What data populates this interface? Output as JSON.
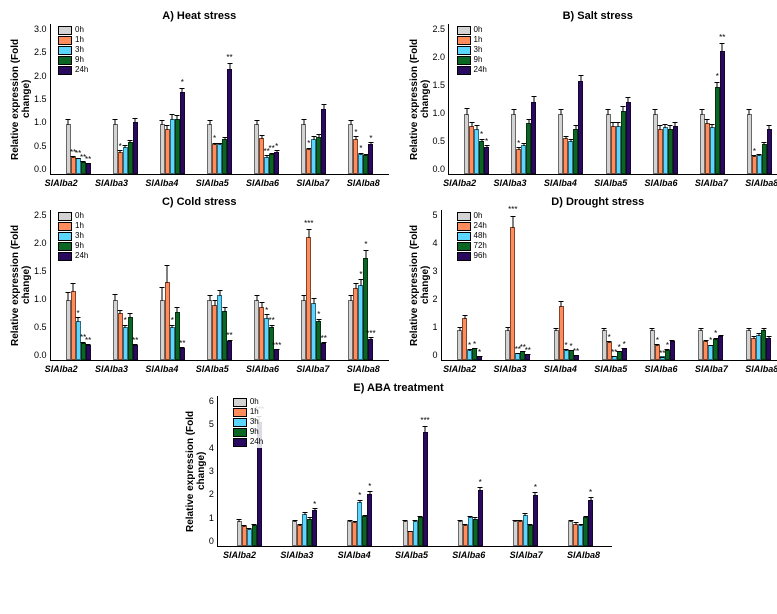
{
  "colors": {
    "t0": "#d3d3d3",
    "t1": "#ff8c5a",
    "t2": "#5ad6ff",
    "t3": "#0b6623",
    "t4": "#2a0a5e"
  },
  "ylabel": "Relative expression\n(Fold change)",
  "genes": [
    "SlAlba2",
    "SlAlba3",
    "SlAlba4",
    "SlAlba5",
    "SlAlba6",
    "SlAlba7",
    "SlAlba8"
  ],
  "panels": [
    {
      "id": "A",
      "title": "A) Heat stress",
      "ymax": 3.0,
      "ystep": 0.5,
      "legend": [
        "0h",
        "1h",
        "3h",
        "9h",
        "24h"
      ],
      "data": [
        [
          {
            "v": 1.0,
            "e": 0.12
          },
          {
            "v": 0.35,
            "e": 0.03,
            "s": "**"
          },
          {
            "v": 0.32,
            "e": 0.03,
            "s": "**"
          },
          {
            "v": 0.25,
            "e": 0.04,
            "s": "**"
          },
          {
            "v": 0.22,
            "e": 0.03,
            "s": "**"
          }
        ],
        [
          {
            "v": 1.0,
            "e": 0.12
          },
          {
            "v": 0.45,
            "e": 0.05,
            "s": "*"
          },
          {
            "v": 0.55,
            "e": 0.06
          },
          {
            "v": 0.65,
            "e": 0.05
          },
          {
            "v": 1.05,
            "e": 0.1
          }
        ],
        [
          {
            "v": 1.0,
            "e": 0.1
          },
          {
            "v": 0.9,
            "e": 0.1
          },
          {
            "v": 1.1,
            "e": 0.12
          },
          {
            "v": 1.1,
            "e": 0.1
          },
          {
            "v": 1.65,
            "e": 0.1,
            "s": "*"
          }
        ],
        [
          {
            "v": 1.0,
            "e": 0.1
          },
          {
            "v": 0.6,
            "e": 0.05,
            "s": "*"
          },
          {
            "v": 0.6,
            "e": 0.05
          },
          {
            "v": 0.7,
            "e": 0.06
          },
          {
            "v": 2.1,
            "e": 0.15,
            "s": "**"
          }
        ],
        [
          {
            "v": 1.0,
            "e": 0.1
          },
          {
            "v": 0.72,
            "e": 0.08
          },
          {
            "v": 0.35,
            "e": 0.05,
            "s": "**"
          },
          {
            "v": 0.4,
            "e": 0.05,
            "s": "**"
          },
          {
            "v": 0.45,
            "e": 0.05,
            "s": "*"
          }
        ],
        [
          {
            "v": 1.0,
            "e": 0.12
          },
          {
            "v": 0.5,
            "e": 0.05,
            "s": "*"
          },
          {
            "v": 0.7,
            "e": 0.08
          },
          {
            "v": 0.75,
            "e": 0.08
          },
          {
            "v": 1.3,
            "e": 0.12
          }
        ],
        [
          {
            "v": 1.0,
            "e": 0.1
          },
          {
            "v": 0.7,
            "e": 0.08,
            "s": "*"
          },
          {
            "v": 0.4,
            "e": 0.05,
            "s": "*"
          },
          {
            "v": 0.38,
            "e": 0.04
          },
          {
            "v": 0.6,
            "e": 0.06,
            "s": "*"
          }
        ]
      ]
    },
    {
      "id": "B",
      "title": "B) Salt stress",
      "ymax": 2.5,
      "ystep": 0.5,
      "legend": [
        "0h",
        "1h",
        "3h",
        "9h",
        "24h"
      ],
      "data": [
        [
          {
            "v": 1.0,
            "e": 0.12
          },
          {
            "v": 0.8,
            "e": 0.08
          },
          {
            "v": 0.75,
            "e": 0.08
          },
          {
            "v": 0.55,
            "e": 0.06,
            "s": "*"
          },
          {
            "v": 0.45,
            "e": 0.05,
            "s": "*"
          }
        ],
        [
          {
            "v": 1.0,
            "e": 0.1
          },
          {
            "v": 0.42,
            "e": 0.05,
            "s": "*"
          },
          {
            "v": 0.48,
            "e": 0.05
          },
          {
            "v": 0.85,
            "e": 0.08
          },
          {
            "v": 1.2,
            "e": 0.12
          }
        ],
        [
          {
            "v": 1.0,
            "e": 0.1
          },
          {
            "v": 0.6,
            "e": 0.06
          },
          {
            "v": 0.55,
            "e": 0.06
          },
          {
            "v": 0.75,
            "e": 0.08
          },
          {
            "v": 1.55,
            "e": 0.12
          }
        ],
        [
          {
            "v": 1.0,
            "e": 0.1
          },
          {
            "v": 0.8,
            "e": 0.08
          },
          {
            "v": 0.8,
            "e": 0.08
          },
          {
            "v": 1.05,
            "e": 0.1
          },
          {
            "v": 1.2,
            "e": 0.1
          }
        ],
        [
          {
            "v": 1.0,
            "e": 0.1
          },
          {
            "v": 0.75,
            "e": 0.08
          },
          {
            "v": 0.78,
            "e": 0.08
          },
          {
            "v": 0.75,
            "e": 0.08
          },
          {
            "v": 0.8,
            "e": 0.08
          }
        ],
        [
          {
            "v": 1.0,
            "e": 0.1
          },
          {
            "v": 0.85,
            "e": 0.08
          },
          {
            "v": 0.78,
            "e": 0.08
          },
          {
            "v": 1.45,
            "e": 0.1,
            "s": "*"
          },
          {
            "v": 2.05,
            "e": 0.15,
            "s": "**"
          }
        ],
        [
          {
            "v": 1.0,
            "e": 0.1
          },
          {
            "v": 0.3,
            "e": 0.04,
            "s": "*"
          },
          {
            "v": 0.32,
            "e": 0.04
          },
          {
            "v": 0.5,
            "e": 0.05
          },
          {
            "v": 0.75,
            "e": 0.08
          }
        ]
      ]
    },
    {
      "id": "C",
      "title": "C) Cold stress",
      "ymax": 2.5,
      "ystep": 0.5,
      "legend": [
        "0h",
        "1h",
        "3h",
        "9h",
        "24h"
      ],
      "data": [
        [
          {
            "v": 1.0,
            "e": 0.15
          },
          {
            "v": 1.15,
            "e": 0.15
          },
          {
            "v": 0.65,
            "e": 0.08,
            "s": "*"
          },
          {
            "v": 0.28,
            "e": 0.05,
            "s": "**"
          },
          {
            "v": 0.25,
            "e": 0.04,
            "s": "**"
          }
        ],
        [
          {
            "v": 1.0,
            "e": 0.12
          },
          {
            "v": 0.78,
            "e": 0.08
          },
          {
            "v": 0.55,
            "e": 0.06,
            "s": "*"
          },
          {
            "v": 0.72,
            "e": 0.08
          },
          {
            "v": 0.25,
            "e": 0.04,
            "s": "**"
          }
        ],
        [
          {
            "v": 1.0,
            "e": 0.25
          },
          {
            "v": 1.3,
            "e": 0.3
          },
          {
            "v": 0.55,
            "e": 0.06,
            "s": "*"
          },
          {
            "v": 0.8,
            "e": 0.1
          },
          {
            "v": 0.2,
            "e": 0.04,
            "s": "**"
          }
        ],
        [
          {
            "v": 1.0,
            "e": 0.1
          },
          {
            "v": 0.92,
            "e": 0.1
          },
          {
            "v": 1.08,
            "e": 0.1
          },
          {
            "v": 0.82,
            "e": 0.08
          },
          {
            "v": 0.32,
            "e": 0.04,
            "s": "**"
          }
        ],
        [
          {
            "v": 1.0,
            "e": 0.1
          },
          {
            "v": 0.88,
            "e": 0.1
          },
          {
            "v": 0.7,
            "e": 0.08,
            "s": "*"
          },
          {
            "v": 0.55,
            "e": 0.06,
            "s": "**"
          },
          {
            "v": 0.18,
            "e": 0.03,
            "s": "***"
          }
        ],
        [
          {
            "v": 1.0,
            "e": 0.1
          },
          {
            "v": 2.05,
            "e": 0.15,
            "s": "***"
          },
          {
            "v": 0.95,
            "e": 0.1
          },
          {
            "v": 0.65,
            "e": 0.06,
            "s": "*"
          },
          {
            "v": 0.28,
            "e": 0.04,
            "s": "**"
          }
        ],
        [
          {
            "v": 1.0,
            "e": 0.1
          },
          {
            "v": 1.2,
            "e": 0.1
          },
          {
            "v": 1.25,
            "e": 0.12,
            "s": "*"
          },
          {
            "v": 1.7,
            "e": 0.15,
            "s": "*"
          },
          {
            "v": 0.35,
            "e": 0.05,
            "s": "***"
          }
        ]
      ]
    },
    {
      "id": "D",
      "title": "D) Drought stress",
      "ymax": 5.0,
      "ystep": 1.0,
      "legend": [
        "0h",
        "24h",
        "48h",
        "72h",
        "96h"
      ],
      "data": [
        [
          {
            "v": 1.0,
            "e": 0.15
          },
          {
            "v": 1.4,
            "e": 0.15
          },
          {
            "v": 0.35,
            "e": 0.05,
            "s": "*"
          },
          {
            "v": 0.4,
            "e": 0.05,
            "s": "*"
          },
          {
            "v": 0.15,
            "e": 0.03,
            "s": "*"
          }
        ],
        [
          {
            "v": 1.0,
            "e": 0.15
          },
          {
            "v": 4.45,
            "e": 0.4,
            "s": "***"
          },
          {
            "v": 0.25,
            "e": 0.04,
            "s": "**"
          },
          {
            "v": 0.3,
            "e": 0.04,
            "s": "**"
          },
          {
            "v": 0.2,
            "e": 0.03,
            "s": "**"
          }
        ],
        [
          {
            "v": 1.0,
            "e": 0.12
          },
          {
            "v": 1.8,
            "e": 0.2
          },
          {
            "v": 0.35,
            "e": 0.05,
            "s": "*"
          },
          {
            "v": 0.32,
            "e": 0.04,
            "s": "*"
          },
          {
            "v": 0.18,
            "e": 0.03,
            "s": "**"
          }
        ],
        [
          {
            "v": 1.0,
            "e": 0.1
          },
          {
            "v": 0.6,
            "e": 0.06,
            "s": "*"
          },
          {
            "v": 0.15,
            "e": 0.03,
            "s": "**"
          },
          {
            "v": 0.3,
            "e": 0.04,
            "s": "*"
          },
          {
            "v": 0.4,
            "e": 0.05,
            "s": "*"
          }
        ],
        [
          {
            "v": 1.0,
            "e": 0.1
          },
          {
            "v": 0.5,
            "e": 0.06,
            "s": "*"
          },
          {
            "v": 0.12,
            "e": 0.03,
            "s": "**"
          },
          {
            "v": 0.35,
            "e": 0.05,
            "s": "*"
          },
          {
            "v": 0.65,
            "e": 0.06
          }
        ],
        [
          {
            "v": 1.0,
            "e": 0.1
          },
          {
            "v": 0.65,
            "e": 0.06
          },
          {
            "v": 0.5,
            "e": 0.05,
            "s": "*"
          },
          {
            "v": 0.7,
            "e": 0.08,
            "s": "*"
          },
          {
            "v": 0.8,
            "e": 0.08
          }
        ],
        [
          {
            "v": 1.0,
            "e": 0.1
          },
          {
            "v": 0.75,
            "e": 0.08
          },
          {
            "v": 0.85,
            "e": 0.08
          },
          {
            "v": 1.0,
            "e": 0.1
          },
          {
            "v": 0.75,
            "e": 0.08
          }
        ]
      ]
    },
    {
      "id": "E",
      "title": "E) ABA treatment",
      "ymax": 6.0,
      "ystep": 1.0,
      "legend": [
        "0h",
        "1h",
        "3h",
        "9h",
        "24h"
      ],
      "data": [
        [
          {
            "v": 1.0,
            "e": 0.12
          },
          {
            "v": 0.8,
            "e": 0.08
          },
          {
            "v": 0.7,
            "e": 0.08
          },
          {
            "v": 0.85,
            "e": 0.1
          },
          {
            "v": 4.95,
            "e": 0.3,
            "s": "***"
          }
        ],
        [
          {
            "v": 1.0,
            "e": 0.1
          },
          {
            "v": 0.85,
            "e": 0.1
          },
          {
            "v": 1.3,
            "e": 0.12
          },
          {
            "v": 1.1,
            "e": 0.1
          },
          {
            "v": 1.45,
            "e": 0.1,
            "s": "*"
          }
        ],
        [
          {
            "v": 1.0,
            "e": 0.1
          },
          {
            "v": 0.95,
            "e": 0.1
          },
          {
            "v": 1.75,
            "e": 0.15,
            "s": "*"
          },
          {
            "v": 1.2,
            "e": 0.1
          },
          {
            "v": 2.1,
            "e": 0.15,
            "s": "*"
          }
        ],
        [
          {
            "v": 1.0,
            "e": 0.1
          },
          {
            "v": 0.6,
            "e": 0.06
          },
          {
            "v": 1.0,
            "e": 0.1
          },
          {
            "v": 1.15,
            "e": 0.1
          },
          {
            "v": 4.55,
            "e": 0.3,
            "s": "***"
          }
        ],
        [
          {
            "v": 1.0,
            "e": 0.1
          },
          {
            "v": 0.85,
            "e": 0.08
          },
          {
            "v": 1.15,
            "e": 0.1
          },
          {
            "v": 1.1,
            "e": 0.1
          },
          {
            "v": 2.25,
            "e": 0.15,
            "s": "*"
          }
        ],
        [
          {
            "v": 1.0,
            "e": 0.1
          },
          {
            "v": 1.0,
            "e": 0.1
          },
          {
            "v": 1.25,
            "e": 0.1
          },
          {
            "v": 0.85,
            "e": 0.08
          },
          {
            "v": 2.05,
            "e": 0.15,
            "s": "*"
          }
        ],
        [
          {
            "v": 1.0,
            "e": 0.1
          },
          {
            "v": 0.9,
            "e": 0.1
          },
          {
            "v": 0.85,
            "e": 0.08
          },
          {
            "v": 1.15,
            "e": 0.1
          },
          {
            "v": 1.85,
            "e": 0.15,
            "s": "*"
          }
        ]
      ]
    }
  ]
}
